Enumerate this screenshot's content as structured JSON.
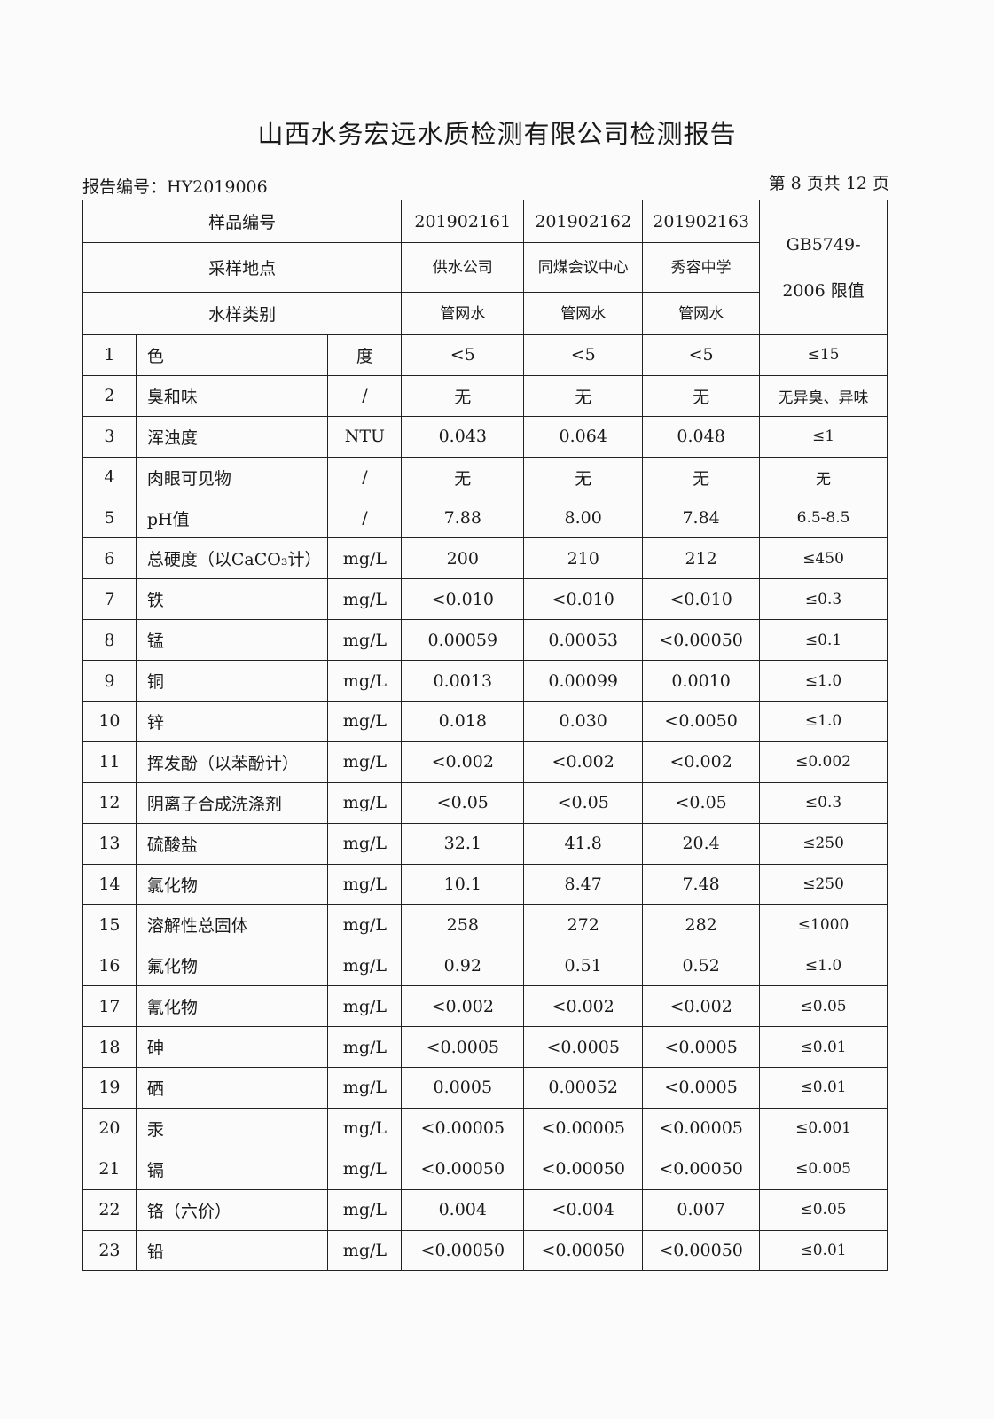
{
  "title": "山西水务宏远水质检测有限公司检测报告",
  "report_no": "报告编号：HY2019006",
  "page_info": "第 8 页共 12 页",
  "header": {
    "sample_no_label": "样品编号",
    "sample_nos": [
      "201902161",
      "201902162",
      "201902163"
    ],
    "location_label": "采样地点",
    "locations": [
      "供水公司",
      "同煤会议中心",
      "秀容中学"
    ],
    "type_label": "水样类别",
    "types": [
      "管网水",
      "管网水",
      "管网水"
    ],
    "limit_label": "GB5749-2006 限值"
  },
  "rows": [
    {
      "no": "1",
      "name": "色",
      "unit": "度",
      "v": [
        "<5",
        "<5",
        "<5"
      ],
      "limit": "≤15"
    },
    {
      "no": "2",
      "name": "臭和味",
      "unit": "/",
      "v": [
        "无",
        "无",
        "无"
      ],
      "limit": "无异臭、异味"
    },
    {
      "no": "3",
      "name": "浑浊度",
      "unit": "NTU",
      "v": [
        "0.043",
        "0.064",
        "0.048"
      ],
      "limit": "≤1"
    },
    {
      "no": "4",
      "name": "肉眼可见物",
      "unit": "/",
      "v": [
        "无",
        "无",
        "无"
      ],
      "limit": "无"
    },
    {
      "no": "5",
      "name": "pH值",
      "unit": "/",
      "v": [
        "7.88",
        "8.00",
        "7.84"
      ],
      "limit": "6.5-8.5"
    },
    {
      "no": "6",
      "name": "总硬度（以CaCO₃计）",
      "unit": "mg/L",
      "v": [
        "200",
        "210",
        "212"
      ],
      "limit": "≤450"
    },
    {
      "no": "7",
      "name": "铁",
      "unit": "mg/L",
      "v": [
        "<0.010",
        "<0.010",
        "<0.010"
      ],
      "limit": "≤0.3"
    },
    {
      "no": "8",
      "name": "锰",
      "unit": "mg/L",
      "v": [
        "0.00059",
        "0.00053",
        "<0.00050"
      ],
      "limit": "≤0.1"
    },
    {
      "no": "9",
      "name": "铜",
      "unit": "mg/L",
      "v": [
        "0.0013",
        "0.00099",
        "0.0010"
      ],
      "limit": "≤1.0"
    },
    {
      "no": "10",
      "name": "锌",
      "unit": "mg/L",
      "v": [
        "0.018",
        "0.030",
        "<0.0050"
      ],
      "limit": "≤1.0"
    },
    {
      "no": "11",
      "name": "挥发酚（以苯酚计）",
      "unit": "mg/L",
      "v": [
        "<0.002",
        "<0.002",
        "<0.002"
      ],
      "limit": "≤0.002"
    },
    {
      "no": "12",
      "name": "阴离子合成洗涤剂",
      "unit": "mg/L",
      "v": [
        "<0.05",
        "<0.05",
        "<0.05"
      ],
      "limit": "≤0.3"
    },
    {
      "no": "13",
      "name": "硫酸盐",
      "unit": "mg/L",
      "v": [
        "32.1",
        "41.8",
        "20.4"
      ],
      "limit": "≤250"
    },
    {
      "no": "14",
      "name": "氯化物",
      "unit": "mg/L",
      "v": [
        "10.1",
        "8.47",
        "7.48"
      ],
      "limit": "≤250"
    },
    {
      "no": "15",
      "name": "溶解性总固体",
      "unit": "mg/L",
      "v": [
        "258",
        "272",
        "282"
      ],
      "limit": "≤1000"
    },
    {
      "no": "16",
      "name": "氟化物",
      "unit": "mg/L",
      "v": [
        "0.92",
        "0.51",
        "0.52"
      ],
      "limit": "≤1.0"
    },
    {
      "no": "17",
      "name": "氰化物",
      "unit": "mg/L",
      "v": [
        "<0.002",
        "<0.002",
        "<0.002"
      ],
      "limit": "≤0.05"
    },
    {
      "no": "18",
      "name": "砷",
      "unit": "mg/L",
      "v": [
        "<0.0005",
        "<0.0005",
        "<0.0005"
      ],
      "limit": "≤0.01"
    },
    {
      "no": "19",
      "name": "硒",
      "unit": "mg/L",
      "v": [
        "0.0005",
        "0.00052",
        "<0.0005"
      ],
      "limit": "≤0.01"
    },
    {
      "no": "20",
      "name": "汞",
      "unit": "mg/L",
      "v": [
        "<0.00005",
        "<0.00005",
        "<0.00005"
      ],
      "limit": "≤0.001"
    },
    {
      "no": "21",
      "name": "镉",
      "unit": "mg/L",
      "v": [
        "<0.00050",
        "<0.00050",
        "<0.00050"
      ],
      "limit": "≤0.005"
    },
    {
      "no": "22",
      "name": "铬（六价）",
      "unit": "mg/L",
      "v": [
        "0.004",
        "<0.004",
        "0.007"
      ],
      "limit": "≤0.05"
    },
    {
      "no": "23",
      "name": "铅",
      "unit": "mg/L",
      "v": [
        "<0.00050",
        "<0.00050",
        "<0.00050"
      ],
      "limit": "≤0.01"
    }
  ]
}
